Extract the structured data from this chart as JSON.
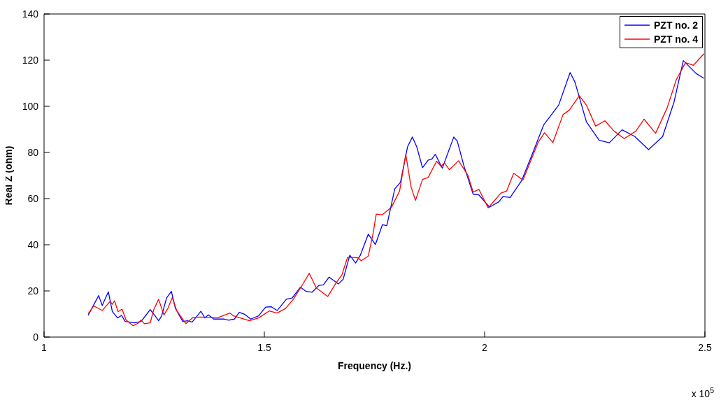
{
  "chart_data": {
    "type": "line",
    "xlabel": "Frequency (Hz.)",
    "ylabel": "Real Z (ohm)",
    "annotations": [
      "x 10$^{5}$"
    ],
    "xlim": [
      1,
      2.5
    ],
    "xticks": [
      1,
      1.5,
      2,
      2.5
    ],
    "ylim": [
      0,
      140
    ],
    "yticks": [
      0,
      20,
      40,
      60,
      80,
      100,
      120,
      140
    ],
    "grid": false,
    "legend": "top right",
    "line_style": "solid",
    "marker": "none",
    "series": [
      {
        "name": "PZT no. 2",
        "color": "#0000ff",
        "x": [
          1.1,
          1.124,
          1.132,
          1.146,
          1.155,
          1.167,
          1.176,
          1.184,
          1.205,
          1.22,
          1.231,
          1.241,
          1.252,
          1.26,
          1.267,
          1.278,
          1.289,
          1.298,
          1.315,
          1.325,
          1.336,
          1.356,
          1.365,
          1.373,
          1.385,
          1.409,
          1.419,
          1.432,
          1.443,
          1.456,
          1.469,
          1.487,
          1.503,
          1.516,
          1.529,
          1.55,
          1.563,
          1.582,
          1.595,
          1.608,
          1.624,
          1.634,
          1.647,
          1.668,
          1.679,
          1.694,
          1.707,
          1.718,
          1.736,
          1.752,
          1.768,
          1.778,
          1.796,
          1.809,
          1.825,
          1.836,
          1.846,
          1.859,
          1.872,
          1.88,
          1.888,
          1.904,
          1.93,
          1.938,
          1.953,
          1.974,
          1.987,
          2.011,
          2.032,
          2.042,
          2.058,
          2.084,
          2.105,
          2.134,
          2.168,
          2.194,
          2.205,
          2.231,
          2.26,
          2.283,
          2.312,
          2.341,
          2.372,
          2.404,
          2.43,
          2.451,
          2.48,
          2.498
        ],
        "values": [
          9.4,
          18,
          13.7,
          19.6,
          11,
          8.3,
          9.4,
          6.8,
          6.2,
          6.7,
          9.4,
          11.9,
          9.2,
          7.1,
          9.2,
          16.9,
          19.8,
          12.5,
          6.7,
          7.1,
          6.5,
          11.2,
          8.3,
          9.6,
          7.8,
          7.8,
          7.3,
          7.8,
          10.7,
          9.8,
          7.8,
          9.2,
          13,
          13.1,
          11.5,
          16.4,
          16.9,
          21.6,
          19.8,
          19.4,
          22.4,
          22.6,
          26,
          23,
          25.1,
          35.5,
          32.1,
          35.5,
          44.6,
          40.1,
          48.7,
          48.3,
          64.2,
          67.1,
          82.4,
          86.7,
          82.4,
          73.4,
          76.7,
          77.1,
          79.2,
          73.2,
          86.7,
          84.9,
          74.2,
          61.9,
          61.6,
          56.3,
          58.6,
          60.9,
          60.5,
          67.8,
          77.8,
          91.9,
          100.5,
          114.6,
          110.5,
          93.3,
          85.3,
          84.2,
          89.8,
          86.9,
          81.2,
          86.9,
          101.9,
          119.8,
          114.2,
          112.1
        ]
      },
      {
        "name": "PZT no. 4",
        "color": "#ff0000",
        "x": [
          1.1,
          1.113,
          1.132,
          1.15,
          1.155,
          1.16,
          1.168,
          1.177,
          1.186,
          1.202,
          1.215,
          1.22,
          1.228,
          1.241,
          1.249,
          1.26,
          1.272,
          1.281,
          1.291,
          1.301,
          1.322,
          1.338,
          1.356,
          1.393,
          1.422,
          1.43,
          1.466,
          1.487,
          1.511,
          1.529,
          1.548,
          1.566,
          1.584,
          1.602,
          1.618,
          1.644,
          1.663,
          1.676,
          1.689,
          1.712,
          1.72,
          1.736,
          1.747,
          1.754,
          1.768,
          1.789,
          1.807,
          1.821,
          1.833,
          1.843,
          1.859,
          1.872,
          1.891,
          1.901,
          1.909,
          1.92,
          1.941,
          1.962,
          1.974,
          1.987,
          2.008,
          2.037,
          2.05,
          2.066,
          2.087,
          2.121,
          2.136,
          2.155,
          2.178,
          2.192,
          2.215,
          2.231,
          2.252,
          2.273,
          2.294,
          2.317,
          2.343,
          2.362,
          2.388,
          2.414,
          2.435,
          2.456,
          2.474,
          2.498
        ],
        "values": [
          10.1,
          13.5,
          11.5,
          15.5,
          14.2,
          15.7,
          11,
          12.1,
          7.4,
          4.9,
          6.2,
          7.4,
          5.8,
          6.2,
          11.9,
          16.4,
          9.6,
          12.4,
          17.1,
          11.5,
          5.8,
          8.5,
          8.7,
          8.3,
          10.4,
          9.2,
          7.1,
          8.3,
          11.3,
          10.4,
          12.4,
          16.4,
          21.9,
          27.6,
          21.3,
          17.6,
          23.5,
          26.9,
          34.6,
          34.4,
          33.1,
          35.1,
          45.1,
          53.3,
          53,
          56.4,
          63.3,
          79.2,
          65.1,
          59.2,
          68.3,
          69.2,
          76.2,
          74,
          75.5,
          72.5,
          76.4,
          70.1,
          62.8,
          64,
          56,
          62.4,
          63.3,
          71,
          68,
          84.2,
          88.5,
          84.3,
          96.4,
          98.3,
          104.6,
          100.5,
          91.4,
          93.7,
          89.2,
          86,
          89.2,
          94.4,
          88.3,
          99.2,
          111.5,
          118.9,
          117.8,
          122.8
        ]
      }
    ]
  }
}
